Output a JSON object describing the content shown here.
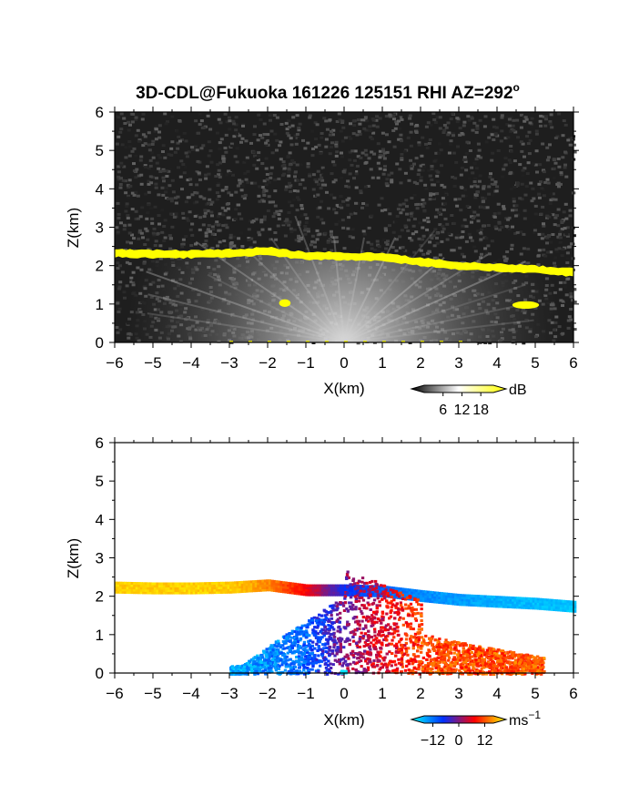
{
  "title": "3D-CDL@Fukuoka 161226 125151 RHI AZ=292",
  "title_degree": "o",
  "chart_data": [
    {
      "type": "heatmap",
      "variable": "backscatter intensity",
      "xlabel": "X(km)",
      "ylabel": "Z(km)",
      "xlim": [
        -6,
        6
      ],
      "ylim": [
        0,
        6
      ],
      "xticks": [
        "-6",
        "-5",
        "-4",
        "-3",
        "-2",
        "-1",
        "0",
        "1",
        "2",
        "3",
        "4",
        "5",
        "6"
      ],
      "yticks": [
        "0",
        "1",
        "2",
        "3",
        "4",
        "5",
        "6"
      ],
      "colorbar": {
        "unit": "dB",
        "ticks": [
          "6",
          "12",
          "18"
        ],
        "tick_values": [
          6,
          12,
          18
        ],
        "range": [
          0,
          22
        ],
        "colors": [
          "#000000",
          "#ffffff",
          "#ffff00"
        ]
      },
      "layer_top_km": [
        {
          "x": -6,
          "z": 2.42
        },
        {
          "x": -5,
          "z": 2.4
        },
        {
          "x": -4,
          "z": 2.4
        },
        {
          "x": -3,
          "z": 2.42
        },
        {
          "x": -2,
          "z": 2.48
        },
        {
          "x": -1,
          "z": 2.35
        },
        {
          "x": 0,
          "z": 2.35
        },
        {
          "x": 1,
          "z": 2.32
        },
        {
          "x": 2,
          "z": 2.2
        },
        {
          "x": 3,
          "z": 2.1
        },
        {
          "x": 4,
          "z": 2.05
        },
        {
          "x": 5,
          "z": 2.0
        },
        {
          "x": 6,
          "z": 1.92
        }
      ],
      "cloud_patches": [
        {
          "x_range": [
            -1.7,
            -1.4
          ],
          "z_range": [
            0.95,
            1.1
          ]
        },
        {
          "x_range": [
            4.4,
            5.1
          ],
          "z_range": [
            0.9,
            1.05
          ]
        }
      ]
    },
    {
      "type": "heatmap",
      "variable": "radial velocity",
      "xlabel": "X(km)",
      "ylabel": "Z(km)",
      "xlim": [
        -6,
        6
      ],
      "ylim": [
        0,
        6
      ],
      "xticks": [
        "-6",
        "-5",
        "-4",
        "-3",
        "-2",
        "-1",
        "0",
        "1",
        "2",
        "3",
        "4",
        "5",
        "6"
      ],
      "yticks": [
        "0",
        "1",
        "2",
        "3",
        "4",
        "5",
        "6"
      ],
      "colorbar": {
        "unit": "ms",
        "unit_exponent": "-1",
        "ticks": [
          "-12",
          "0",
          "12"
        ],
        "tick_values": [
          -12,
          0,
          12
        ],
        "range": [
          -16,
          16
        ],
        "colors": [
          "#00ffff",
          "#0030ff",
          "#ff0000",
          "#ffff00"
        ]
      },
      "layer_velocity_ms": [
        {
          "x": -6,
          "v": 14
        },
        {
          "x": -3,
          "v": 14
        },
        {
          "x": -2,
          "v": 11
        },
        {
          "x": -1,
          "v": 5
        },
        {
          "x": 0,
          "v": -5
        },
        {
          "x": 1,
          "v": -8
        },
        {
          "x": 2,
          "v": -10
        },
        {
          "x": 4,
          "v": -12
        },
        {
          "x": 6,
          "v": -13
        }
      ],
      "lower_velocity_ms": [
        {
          "x": -3,
          "v": -12
        },
        {
          "x": -1,
          "v": -8
        },
        {
          "x": 0,
          "v": 0
        },
        {
          "x": 1,
          "v": 4
        },
        {
          "x": 2,
          "v": 8
        },
        {
          "x": 5,
          "v": 9
        }
      ]
    }
  ]
}
